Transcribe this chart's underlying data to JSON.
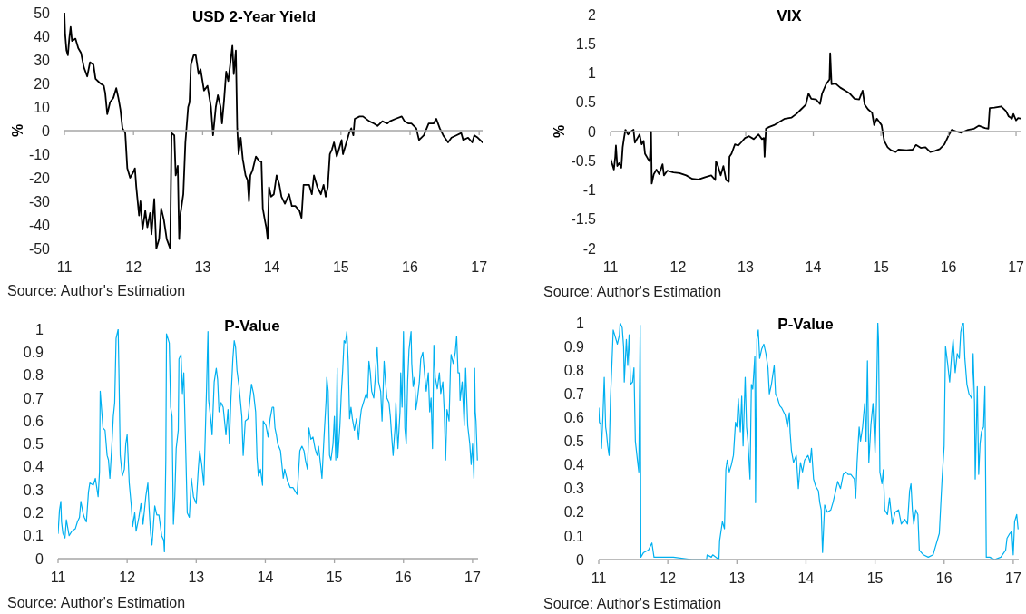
{
  "chart_data": [
    {
      "type": "line",
      "title": "USD 2-Year Yield",
      "ylabel": "%",
      "annotations": [
        "Source: Author's Estimation"
      ],
      "x": [
        11.0,
        11.01,
        11.03,
        11.05,
        11.07,
        11.09,
        11.11,
        11.16,
        11.2,
        11.24,
        11.28,
        11.33,
        11.37,
        11.42,
        11.45,
        11.52,
        11.57,
        11.59,
        11.62,
        11.66,
        11.71,
        11.75,
        11.78,
        11.81,
        11.84,
        11.88,
        11.91,
        11.95,
        11.99,
        12.02,
        12.04,
        12.08,
        12.1,
        12.13,
        12.17,
        12.2,
        12.24,
        12.26,
        12.3,
        12.33,
        12.37,
        12.4,
        12.44,
        12.48,
        12.53,
        12.55,
        12.59,
        12.61,
        12.64,
        12.66,
        12.68,
        12.72,
        12.75,
        12.79,
        12.81,
        12.83,
        12.87,
        12.9,
        12.94,
        12.97,
        13.02,
        13.07,
        13.12,
        13.15,
        13.19,
        13.22,
        13.26,
        13.28,
        13.31,
        13.34,
        13.37,
        13.41,
        13.43,
        13.45,
        13.48,
        13.5,
        13.52,
        13.55,
        13.58,
        13.62,
        13.65,
        13.67,
        13.69,
        13.72,
        13.77,
        13.82,
        13.85,
        13.87,
        13.9,
        13.92,
        13.94,
        13.96,
        13.99,
        14.03,
        14.07,
        14.11,
        14.14,
        14.19,
        14.25,
        14.29,
        14.34,
        14.4,
        14.43,
        14.46,
        14.5,
        14.54,
        14.58,
        14.61,
        14.66,
        14.71,
        14.75,
        14.78,
        14.81,
        14.84,
        14.87,
        14.9,
        14.94,
        14.98,
        15.01,
        15.03,
        15.07,
        15.12,
        15.15,
        15.18,
        15.2,
        15.27,
        15.32,
        15.41,
        15.48,
        15.53,
        15.6,
        15.67,
        15.71,
        15.79,
        15.88,
        15.92,
        15.98,
        16.02,
        16.09,
        16.13,
        16.2,
        16.27,
        16.34,
        16.38,
        16.43,
        16.48,
        16.55,
        16.6,
        16.67,
        16.74,
        16.77,
        16.84,
        16.9,
        16.93,
        16.98,
        17.05
      ],
      "series": [
        {
          "color": "#000000",
          "values": [
            50,
            41,
            34,
            32,
            39,
            44,
            38,
            39,
            35,
            33,
            27,
            23,
            29,
            28,
            22,
            20,
            19,
            16,
            7,
            12,
            14,
            18,
            14,
            9,
            1,
            -1,
            -16,
            -20,
            -18,
            -16,
            -24,
            -36,
            -30,
            -42,
            -34,
            -41,
            -35,
            -44,
            -29,
            -50,
            -46,
            -33,
            -38,
            -46,
            -50,
            -1,
            -2,
            -19,
            -15,
            -46,
            -35,
            -27,
            -5,
            10,
            12,
            28,
            32,
            32,
            24,
            26,
            17,
            19,
            10,
            -2,
            10,
            15,
            10,
            3,
            13,
            25,
            21,
            31,
            36,
            24,
            34,
            1,
            -10,
            -3,
            -12,
            -19,
            -21,
            -30,
            -19,
            -17,
            -11,
            -13,
            -13,
            -33,
            -38,
            -41,
            -46,
            -24,
            -28,
            -27,
            -19,
            -23,
            -28,
            -31,
            -27,
            -32,
            -32,
            -34,
            -37,
            -23,
            -23,
            -23,
            -27,
            -19,
            -24,
            -27,
            -23,
            -28,
            -24,
            -10,
            -8,
            -5,
            -11,
            -7,
            -4,
            -10,
            -6,
            -1,
            1,
            -2,
            5,
            6,
            6,
            4,
            3,
            2,
            4,
            3,
            4,
            5,
            6,
            4,
            3,
            3,
            1,
            -4,
            -2,
            3,
            3,
            5,
            1,
            -2,
            -5,
            -3,
            -2,
            -1,
            -4,
            -3,
            -5,
            -2,
            -3,
            -5
          ]
        }
      ],
      "xlim": [
        11,
        17.05
      ],
      "xticks": [
        11,
        12,
        13,
        14,
        15,
        16,
        17
      ],
      "ylim": [
        -50,
        50
      ],
      "yticks": [
        -50,
        -40,
        -30,
        -20,
        -10,
        0,
        10,
        20,
        30,
        40,
        50
      ]
    },
    {
      "type": "line",
      "title": "VIX",
      "ylabel": "%",
      "annotations": [
        "Source: Author's Estimation"
      ],
      "x": [
        11.0,
        11.02,
        11.05,
        11.07,
        11.08,
        11.1,
        11.13,
        11.16,
        11.18,
        11.2,
        11.22,
        11.26,
        11.3,
        11.34,
        11.36,
        11.4,
        11.43,
        11.46,
        11.49,
        11.51,
        11.55,
        11.58,
        11.6,
        11.61,
        11.64,
        11.68,
        11.72,
        11.77,
        11.79,
        11.84,
        11.93,
        12.02,
        12.12,
        12.21,
        12.3,
        12.4,
        12.49,
        12.55,
        12.56,
        12.59,
        12.63,
        12.67,
        12.71,
        12.75,
        12.76,
        12.79,
        12.84,
        12.89,
        12.93,
        12.99,
        13.05,
        13.12,
        13.19,
        13.24,
        13.27,
        13.28,
        13.3,
        13.35,
        13.42,
        13.49,
        13.58,
        13.68,
        13.75,
        13.82,
        13.89,
        13.93,
        13.97,
        14.04,
        14.1,
        14.13,
        14.19,
        14.24,
        14.25,
        14.27,
        14.33,
        14.4,
        14.47,
        14.54,
        14.61,
        14.68,
        14.73,
        14.76,
        14.81,
        14.87,
        14.9,
        14.94,
        15.01,
        15.05,
        15.1,
        15.15,
        15.22,
        15.26,
        15.38,
        15.47,
        15.52,
        15.59,
        15.66,
        15.73,
        15.8,
        15.87,
        15.94,
        16.01,
        16.05,
        16.12,
        16.19,
        16.29,
        16.38,
        16.45,
        16.54,
        16.59,
        16.61,
        16.68,
        16.78,
        16.85,
        16.89,
        16.94,
        16.96,
        17.0,
        17.03,
        17.08
      ],
      "series": [
        {
          "color": "#000000",
          "values": [
            -0.46,
            -0.54,
            -0.65,
            -0.43,
            -0.24,
            -0.59,
            -0.54,
            -0.62,
            -0.27,
            -0.11,
            0.03,
            -0.05,
            0,
            0.03,
            -0.19,
            -0.11,
            -0.05,
            -0.22,
            -0.16,
            -0.38,
            -0.46,
            -0.51,
            0,
            -0.89,
            -0.73,
            -0.65,
            -0.73,
            -0.56,
            -0.75,
            -0.67,
            -0.7,
            -0.71,
            -0.75,
            -0.81,
            -0.82,
            -0.78,
            -0.75,
            -0.83,
            -0.51,
            -0.59,
            -0.75,
            -0.59,
            -0.83,
            -0.86,
            -0.43,
            -0.38,
            -0.22,
            -0.24,
            -0.19,
            -0.11,
            -0.08,
            -0.13,
            -0.05,
            -0.13,
            -0.11,
            -0.43,
            0.05,
            0.08,
            0.11,
            0.16,
            0.22,
            0.24,
            0.3,
            0.38,
            0.46,
            0.65,
            0.56,
            0.55,
            0.47,
            0.65,
            0.81,
            0.89,
            1.34,
            0.81,
            0.82,
            0.75,
            0.7,
            0.65,
            0.56,
            0.55,
            0.7,
            0.46,
            0.38,
            0.32,
            0.11,
            0.22,
            0.11,
            -0.16,
            -0.27,
            -0.32,
            -0.35,
            -0.31,
            -0.32,
            -0.31,
            -0.23,
            -0.28,
            -0.27,
            -0.35,
            -0.33,
            -0.3,
            -0.22,
            -0.05,
            0.03,
            0,
            -0.02,
            0.03,
            0.05,
            0.1,
            0.06,
            0.05,
            0.4,
            0.41,
            0.43,
            0.35,
            0.26,
            0.22,
            0.3,
            0.19,
            0.23,
            0.22
          ]
        }
      ],
      "xlim": [
        11,
        17.08
      ],
      "xticks": [
        11,
        12,
        13,
        14,
        15,
        16,
        17
      ],
      "ylim": [
        -2,
        2
      ],
      "yticks": [
        -2,
        -1.5,
        -1,
        -0.5,
        0,
        0.5,
        1,
        1.5,
        2
      ]
    },
    {
      "type": "line",
      "title": "P-Value",
      "annotations": [
        "Source: Author's Estimation"
      ],
      "x": [
        11.0,
        11.02,
        11.04,
        11.05,
        11.07,
        11.1,
        11.12,
        11.16,
        11.2,
        11.25,
        11.28,
        11.31,
        11.33,
        11.36,
        11.38,
        11.41,
        11.44,
        11.46,
        11.51,
        11.54,
        11.58,
        11.6,
        11.61,
        11.63,
        11.65,
        11.68,
        11.71,
        11.73,
        11.75,
        11.78,
        11.8,
        11.82,
        11.84,
        11.87,
        11.88,
        11.9,
        11.93,
        11.96,
        11.98,
        12.0,
        12.03,
        12.06,
        12.08,
        12.11,
        12.13,
        12.17,
        12.2,
        12.23,
        12.27,
        12.3,
        12.32,
        12.34,
        12.36,
        12.4,
        12.43,
        12.46,
        12.5,
        12.53,
        12.54,
        12.56,
        12.57,
        12.61,
        12.63,
        12.65,
        12.67,
        12.69,
        12.71,
        12.74,
        12.75,
        12.78,
        12.8,
        12.82,
        12.85,
        12.87,
        12.9,
        12.93,
        12.96,
        13.0,
        13.03,
        13.05,
        13.08,
        13.11,
        13.13,
        13.15,
        13.17,
        13.18,
        13.21,
        13.23,
        13.26,
        13.29,
        13.31,
        13.33,
        13.36,
        13.39,
        13.43,
        13.46,
        13.48,
        13.5,
        13.53,
        13.55,
        13.57,
        13.59,
        13.62,
        13.66,
        13.68,
        13.71,
        13.75,
        13.78,
        13.8,
        13.83,
        13.86,
        13.88,
        13.9,
        13.93,
        13.96,
        13.97,
        14.01,
        14.04,
        14.07,
        14.1,
        14.12,
        14.14,
        14.16,
        14.18,
        14.22,
        14.24,
        14.26,
        14.28,
        14.32,
        14.36,
        14.4,
        14.44,
        14.46,
        14.48,
        14.5,
        14.53,
        14.56,
        14.58,
        14.61,
        14.63,
        14.66,
        14.69,
        14.72,
        14.75,
        14.77,
        14.8,
        14.82,
        14.85,
        14.88,
        14.89,
        14.91,
        14.93,
        14.95,
        14.98,
        15.0,
        15.02,
        15.04,
        15.05,
        15.08,
        15.1,
        15.12,
        15.14,
        15.16,
        15.18,
        15.2,
        15.22,
        15.24,
        15.26,
        15.29,
        15.32,
        15.35,
        15.37,
        15.39,
        15.42,
        15.46,
        15.48,
        15.5,
        15.52,
        15.54,
        15.57,
        15.59,
        15.61,
        15.62,
        15.64,
        15.67,
        15.69,
        15.72,
        15.74,
        15.76,
        15.79,
        15.81,
        15.83,
        15.85,
        15.88,
        15.89,
        15.92,
        15.95,
        15.96,
        15.98,
        16.0,
        16.02,
        16.04,
        16.06,
        16.08,
        16.11,
        16.12,
        16.14,
        16.16,
        16.18,
        16.2,
        16.23,
        16.25,
        16.28,
        16.31,
        16.33,
        16.36,
        16.38,
        16.4,
        16.42,
        16.44,
        16.46,
        16.49,
        16.52,
        16.54,
        16.57,
        16.59,
        16.61,
        16.63,
        16.66,
        16.68,
        16.69,
        16.72,
        16.75,
        16.77,
        16.79,
        16.81,
        16.82,
        16.85,
        16.88,
        16.9,
        16.93,
        16.96,
        16.98,
        17.0,
        17.02,
        17.03,
        17.04,
        17.05,
        17.07
      ],
      "series": [
        {
          "color": "#00b0f0",
          "values": [
            0.11,
            0.21,
            0.25,
            0.16,
            0.11,
            0.09,
            0.17,
            0.1,
            0.12,
            0.13,
            0.16,
            0.18,
            0.25,
            0.2,
            0.18,
            0.16,
            0.29,
            0.33,
            0.32,
            0.35,
            0.27,
            0.38,
            0.73,
            0.65,
            0.57,
            0.56,
            0.45,
            0.43,
            0.35,
            0.5,
            0.62,
            0.68,
            0.96,
            1.0,
            0.83,
            0.45,
            0.36,
            0.39,
            0.5,
            0.54,
            0.33,
            0.23,
            0.14,
            0.2,
            0.12,
            0.18,
            0.24,
            0.15,
            0.27,
            0.33,
            0.21,
            0.11,
            0.06,
            0.23,
            0.19,
            0.19,
            0.1,
            0.08,
            0.03,
            0.43,
            0.98,
            0.94,
            0.66,
            0.62,
            0.15,
            0.27,
            0.48,
            0.56,
            0.87,
            0.89,
            0.72,
            0.81,
            0.45,
            0.2,
            0.18,
            0.35,
            0.27,
            0.24,
            0.39,
            0.47,
            0.41,
            0.32,
            0.53,
            0.75,
            0.99,
            0.69,
            0.61,
            0.54,
            0.77,
            0.83,
            0.78,
            0.64,
            0.68,
            0.66,
            0.54,
            0.65,
            0.5,
            0.68,
            0.87,
            0.95,
            0.92,
            0.82,
            0.75,
            0.62,
            0.45,
            0.6,
            0.61,
            0.7,
            0.76,
            0.72,
            0.64,
            0.44,
            0.36,
            0.39,
            0.32,
            0.6,
            0.58,
            0.53,
            0.61,
            0.66,
            0.66,
            0.57,
            0.54,
            0.5,
            0.47,
            0.41,
            0.35,
            0.39,
            0.34,
            0.31,
            0.31,
            0.29,
            0.28,
            0.37,
            0.47,
            0.49,
            0.47,
            0.43,
            0.39,
            0.57,
            0.52,
            0.53,
            0.48,
            0.45,
            0.49,
            0.41,
            0.35,
            0.53,
            0.69,
            0.79,
            0.73,
            0.45,
            0.43,
            0.5,
            0.62,
            0.43,
            0.83,
            0.44,
            0.58,
            0.72,
            0.82,
            0.95,
            0.94,
            0.99,
            0.86,
            0.61,
            0.66,
            0.61,
            0.56,
            0.61,
            0.52,
            0.6,
            0.65,
            0.68,
            0.72,
            0.7,
            0.86,
            0.81,
            0.73,
            0.7,
            0.78,
            0.89,
            0.92,
            0.77,
            0.73,
            0.6,
            0.86,
            0.77,
            0.7,
            0.68,
            0.62,
            0.53,
            0.45,
            0.58,
            0.68,
            0.48,
            0.64,
            0.81,
            0.66,
            0.99,
            0.57,
            0.5,
            0.77,
            0.91,
            0.99,
            0.85,
            0.75,
            0.79,
            0.65,
            0.69,
            0.77,
            0.87,
            0.9,
            0.79,
            0.73,
            0.81,
            0.64,
            0.7,
            0.48,
            0.93,
            0.79,
            0.74,
            0.81,
            0.72,
            0.77,
            0.64,
            0.43,
            0.65,
            0.6,
            0.83,
            0.89,
            0.85,
            0.9,
            0.97,
            0.81,
            0.81,
            0.69,
            0.77,
            0.58,
            0.83,
            0.58,
            0.5,
            0.41,
            0.5,
            0.35,
            0.83,
            0.64,
            0.6,
            0.43
          ]
        }
      ],
      "xlim": [
        11,
        17.08
      ],
      "xticks": [
        11,
        12,
        13,
        14,
        15,
        16,
        17
      ],
      "ylim": [
        0,
        1
      ],
      "yticks": [
        0,
        0.1,
        0.2,
        0.3,
        0.4,
        0.5,
        0.6,
        0.7,
        0.8,
        0.9,
        1
      ]
    },
    {
      "type": "line",
      "title": "P-Value",
      "annotations": [
        "Source: Author's Estimation"
      ],
      "x": [
        11.0,
        11.01,
        11.03,
        11.04,
        11.06,
        11.08,
        11.1,
        11.11,
        11.13,
        11.15,
        11.17,
        11.19,
        11.21,
        11.24,
        11.27,
        11.3,
        11.31,
        11.34,
        11.36,
        11.37,
        11.4,
        11.42,
        11.44,
        11.46,
        11.49,
        11.51,
        11.53,
        11.56,
        11.58,
        11.6,
        11.61,
        11.65,
        11.72,
        11.77,
        11.8,
        11.9,
        12.08,
        12.35,
        12.56,
        12.57,
        12.63,
        12.65,
        12.74,
        12.75,
        12.79,
        12.82,
        12.84,
        12.86,
        12.89,
        12.92,
        12.95,
        12.98,
        13.0,
        13.02,
        13.05,
        13.07,
        13.09,
        13.12,
        13.14,
        13.16,
        13.19,
        13.21,
        13.23,
        13.26,
        13.27,
        13.29,
        13.31,
        13.33,
        13.36,
        13.39,
        13.42,
        13.45,
        13.47,
        13.5,
        13.54,
        13.56,
        13.59,
        13.62,
        13.65,
        13.7,
        13.73,
        13.76,
        13.77,
        13.79,
        13.82,
        13.86,
        13.89,
        13.92,
        13.95,
        13.98,
        14.03,
        14.06,
        14.08,
        14.11,
        14.14,
        14.18,
        14.2,
        14.22,
        14.24,
        14.27,
        14.31,
        14.36,
        14.39,
        14.43,
        14.46,
        14.5,
        14.54,
        14.58,
        14.61,
        14.65,
        14.7,
        14.72,
        14.74,
        14.77,
        14.79,
        14.82,
        14.85,
        14.87,
        14.89,
        14.91,
        14.94,
        14.97,
        15.0,
        15.02,
        15.04,
        15.05,
        15.07,
        15.1,
        15.12,
        15.14,
        15.18,
        15.21,
        15.25,
        15.29,
        15.34,
        15.38,
        15.43,
        15.47,
        15.5,
        15.52,
        15.54,
        15.56,
        15.59,
        15.62,
        15.64,
        15.7,
        15.77,
        15.84,
        15.87,
        15.93,
        15.97,
        16.0,
        16.02,
        16.05,
        16.08,
        16.11,
        16.13,
        16.16,
        16.19,
        16.22,
        16.24,
        16.26,
        16.28,
        16.3,
        16.33,
        16.36,
        16.4,
        16.42,
        16.44,
        16.45,
        16.48,
        16.5,
        16.52,
        16.54,
        16.57,
        16.59,
        16.61,
        16.66,
        16.73,
        16.82,
        16.89,
        16.91,
        16.95,
        16.98,
        17.0,
        17.02,
        17.05,
        17.07
      ],
      "series": [
        {
          "color": "#00b0f0",
          "values": [
            0.64,
            0.58,
            0.57,
            0.47,
            0.6,
            0.77,
            0.56,
            0.54,
            0.48,
            0.44,
            0.68,
            0.82,
            0.97,
            0.94,
            0.91,
            0.95,
            1.0,
            0.98,
            0.9,
            0.75,
            0.93,
            0.82,
            0.95,
            0.74,
            0.75,
            0.81,
            0.5,
            0.42,
            0.37,
            0.99,
            0.01,
            0.03,
            0.04,
            0.07,
            0.01,
            0.01,
            0.01,
            0,
            0,
            0.02,
            0.01,
            0.02,
            0,
            0.08,
            0.16,
            0.13,
            0.38,
            0.42,
            0.37,
            0.4,
            0.44,
            0.58,
            0.56,
            0.68,
            0.54,
            0.69,
            0.48,
            0.77,
            0.56,
            0.5,
            0.34,
            0.74,
            0.72,
            0.86,
            0.24,
            0.93,
            0.97,
            0.85,
            0.89,
            0.91,
            0.87,
            0.81,
            0.7,
            0.74,
            0.82,
            0.7,
            0.68,
            0.65,
            0.64,
            0.61,
            0.56,
            0.62,
            0.54,
            0.46,
            0.41,
            0.44,
            0.3,
            0.41,
            0.37,
            0.42,
            0.44,
            0.41,
            0.47,
            0.34,
            0.31,
            0.29,
            0.24,
            0.21,
            0.03,
            0.23,
            0.2,
            0.21,
            0.24,
            0.29,
            0.33,
            0.3,
            0.36,
            0.37,
            0.36,
            0.36,
            0.34,
            0.26,
            0.41,
            0.56,
            0.5,
            0.56,
            0.66,
            0.5,
            0.84,
            0.41,
            0.57,
            0.66,
            0.45,
            0.66,
            1.0,
            0.93,
            0.37,
            0.32,
            0.38,
            0.21,
            0.19,
            0.26,
            0.15,
            0.2,
            0.21,
            0.15,
            0.17,
            0.15,
            0.29,
            0.32,
            0.21,
            0.15,
            0.21,
            0.19,
            0.04,
            0.02,
            0.01,
            0.02,
            0.05,
            0.11,
            0.34,
            0.48,
            0.9,
            0.83,
            0.75,
            0.87,
            0.93,
            0.79,
            0.87,
            0.85,
            0.96,
            0.99,
            1.0,
            0.85,
            0.74,
            0.7,
            0.68,
            0.87,
            0.66,
            0.34,
            0.73,
            0.36,
            0.49,
            0.54,
            0.56,
            0.73,
            0.01,
            0.01,
            0,
            0.01,
            0.04,
            0.09,
            0.11,
            0.12,
            0.02,
            0.16,
            0.19,
            0.13
          ]
        }
      ],
      "xlim": [
        11,
        17.08
      ],
      "xticks": [
        11,
        12,
        13,
        14,
        15,
        16,
        17
      ],
      "ylim": [
        0,
        1
      ],
      "yticks": [
        0,
        0.1,
        0.2,
        0.3,
        0.4,
        0.5,
        0.6,
        0.7,
        0.8,
        0.9,
        1
      ]
    }
  ]
}
